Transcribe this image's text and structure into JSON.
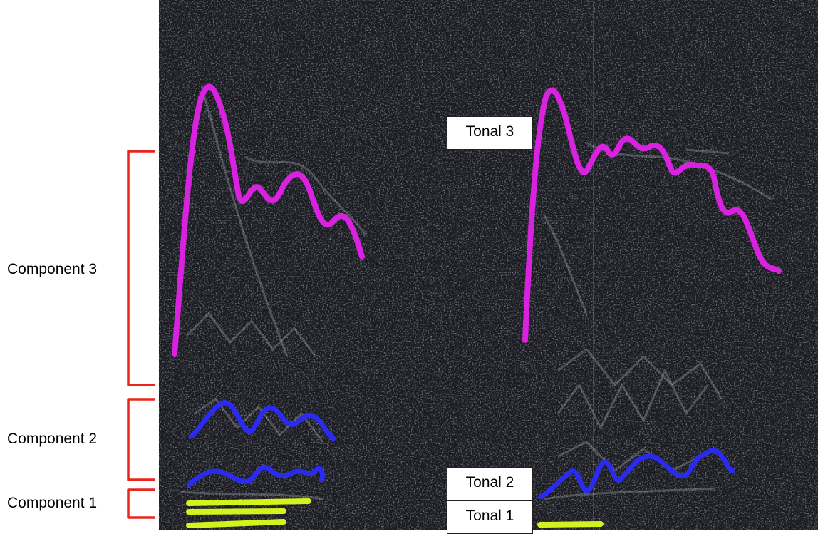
{
  "components": [
    {
      "key": "c3",
      "label": "Component 3"
    },
    {
      "key": "c2",
      "label": "Component 2"
    },
    {
      "key": "c1",
      "label": "Component 1"
    }
  ],
  "tonals": [
    {
      "key": "t3",
      "label": "Tonal 3"
    },
    {
      "key": "t2",
      "label": "Tonal 2"
    },
    {
      "key": "t1",
      "label": "Tonal 1"
    }
  ],
  "colors": {
    "tonal_3": "#d822e0",
    "tonal_2": "#2b2bf0",
    "tonal_1": "#d4f21c",
    "bracket": "#e8261c",
    "background": "#1b1c22"
  }
}
